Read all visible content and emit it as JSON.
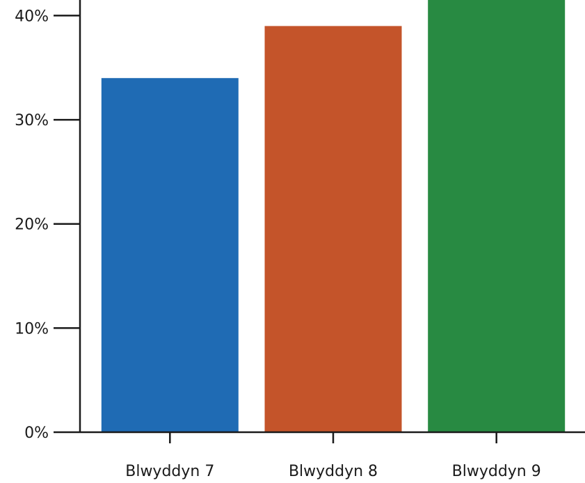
{
  "chart_data": {
    "type": "bar",
    "title": "",
    "xlabel": "",
    "ylabel": "",
    "categories": [
      "Blwyddyn 7",
      "Blwyddyn 8",
      "Blwyddyn 9"
    ],
    "values": [
      34,
      39,
      43
    ],
    "colors": [
      "#1f6bb4",
      "#c4542a",
      "#288a42"
    ],
    "ylim": [
      0,
      41.5
    ],
    "yticks": [
      0,
      10,
      20,
      30,
      40
    ],
    "ytick_labels": [
      "0%",
      "10%",
      "20%",
      "30%",
      "40%"
    ],
    "grid": false,
    "legend": "none"
  }
}
